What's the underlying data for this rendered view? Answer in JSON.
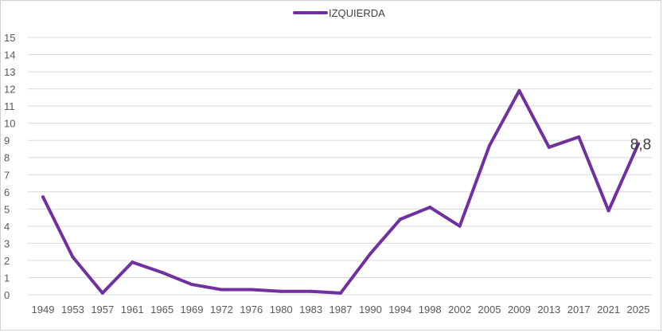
{
  "chart_data": {
    "type": "line",
    "title": "",
    "xlabel": "",
    "ylabel": "",
    "ylim": [
      0,
      15
    ],
    "y_ticks": [
      "0",
      "1",
      "2",
      "3",
      "4",
      "5",
      "6",
      "7",
      "8",
      "9",
      "10",
      "11",
      "12",
      "13",
      "14",
      "15"
    ],
    "grid": "horizontal",
    "legend_position": "top-center",
    "categories": [
      "1949",
      "1953",
      "1957",
      "1961",
      "1965",
      "1969",
      "1972",
      "1976",
      "1980",
      "1983",
      "1987",
      "1990",
      "1994",
      "1998",
      "2002",
      "2005",
      "2009",
      "2013",
      "2017",
      "2021",
      "2025"
    ],
    "series": [
      {
        "name": "IZQUIERDA",
        "color": "#7030a0",
        "values": [
          5.7,
          2.2,
          0.1,
          1.9,
          1.3,
          0.6,
          0.3,
          0.3,
          0.2,
          0.2,
          0.1,
          2.4,
          4.4,
          5.1,
          4.0,
          8.7,
          11.9,
          8.6,
          9.2,
          4.9,
          8.8
        ]
      }
    ],
    "data_labels": [
      {
        "series": 0,
        "index": 20,
        "text": "8,8"
      }
    ]
  }
}
